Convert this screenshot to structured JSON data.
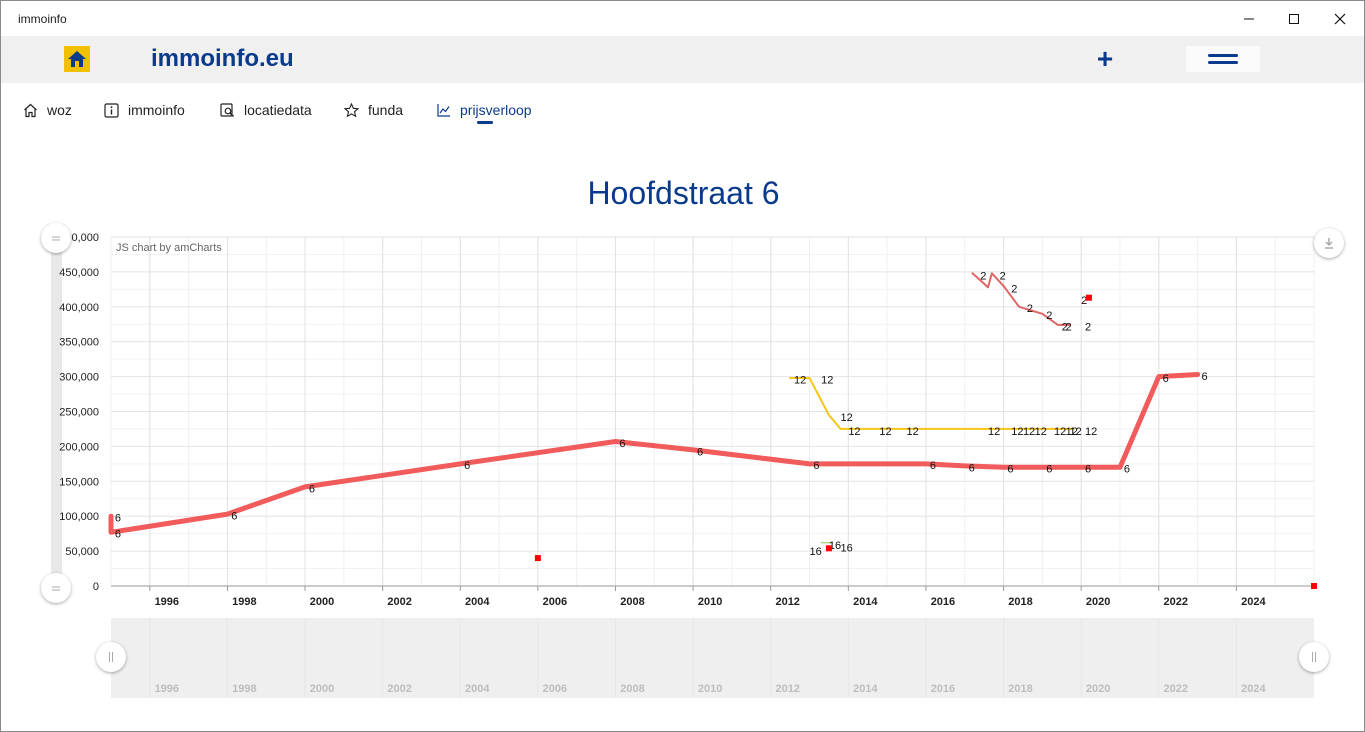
{
  "window": {
    "title": "immoinfo"
  },
  "header": {
    "brand": "immoinfo.eu",
    "add_label": "+"
  },
  "tabs": [
    {
      "label": "woz",
      "icon": "home-icon"
    },
    {
      "label": "immoinfo",
      "icon": "info-icon"
    },
    {
      "label": "locatiedata",
      "icon": "location-search-icon"
    },
    {
      "label": "funda",
      "icon": "star-icon"
    },
    {
      "label": "prijsverloop",
      "icon": "line-chart-icon",
      "active": true
    }
  ],
  "page": {
    "title": "Hoofdstraat  6",
    "credit": "JS chart by amCharts"
  },
  "colors": {
    "accent": "#0a3a8c",
    "series6": "#f15b5b",
    "series12": "#f5c518",
    "series2": "#e06666",
    "point": "#ff0000",
    "logo": "#f3c000"
  },
  "chart_data": {
    "type": "line",
    "title": "Hoofdstraat  6",
    "x_ticks": [
      "1996",
      "1998",
      "2000",
      "2002",
      "2004",
      "2006",
      "2008",
      "2010",
      "2012",
      "2014",
      "2016",
      "2018",
      "2020",
      "2022",
      "2024"
    ],
    "y_ticks": [
      "0",
      "50,000",
      "100,000",
      "150,000",
      "200,000",
      "250,000",
      "300,000",
      "350,000",
      "400,000",
      "450,000",
      "500,000"
    ],
    "xlim": [
      1995,
      2026
    ],
    "ylim": [
      0,
      500000
    ],
    "grid": true,
    "series": [
      {
        "name": "6",
        "color": "#f15b5b",
        "width": 5,
        "points": [
          [
            1995,
            100000
          ],
          [
            1995,
            77000
          ],
          [
            1998,
            103000
          ],
          [
            2000,
            142000
          ],
          [
            2004,
            175000
          ],
          [
            2008,
            207000
          ],
          [
            2010,
            195000
          ],
          [
            2013,
            175000
          ],
          [
            2016,
            175000
          ],
          [
            2017,
            172000
          ],
          [
            2018,
            170000
          ],
          [
            2019,
            170000
          ],
          [
            2020,
            170000
          ],
          [
            2021,
            170000
          ],
          [
            2022,
            300000
          ],
          [
            2023,
            303000
          ]
        ],
        "labels": [
          [
            1995.1,
            98000,
            "6"
          ],
          [
            1995.1,
            75000,
            "6"
          ],
          [
            1998.1,
            101000,
            "6"
          ],
          [
            2000.1,
            140000,
            "6"
          ],
          [
            2004.1,
            173000,
            "6"
          ],
          [
            2008.1,
            205000,
            "6"
          ],
          [
            2010.1,
            193000,
            "6"
          ],
          [
            2013.1,
            173000,
            "6"
          ],
          [
            2016.1,
            173000,
            "6"
          ],
          [
            2017.1,
            170000,
            "6"
          ],
          [
            2018.1,
            168000,
            "6"
          ],
          [
            2019.1,
            168000,
            "6"
          ],
          [
            2020.1,
            168000,
            "6"
          ],
          [
            2021.1,
            168000,
            "6"
          ],
          [
            2022.1,
            298000,
            "6"
          ],
          [
            2023.1,
            301000,
            "6"
          ]
        ]
      },
      {
        "name": "12",
        "color": "#f5c518",
        "width": 2,
        "points": [
          [
            2012.5,
            298000
          ],
          [
            2013,
            298000
          ],
          [
            2013.5,
            245000
          ],
          [
            2013.8,
            225000
          ],
          [
            2019.8,
            225000
          ]
        ],
        "labels": [
          [
            2012.6,
            296000,
            "12"
          ],
          [
            2013.3,
            296000,
            "12"
          ],
          [
            2013.8,
            242000,
            "12"
          ],
          [
            2014.0,
            222000,
            "12"
          ],
          [
            2014.8,
            222000,
            "12"
          ],
          [
            2015.5,
            222000,
            "12"
          ],
          [
            2017.6,
            222000,
            "12"
          ],
          [
            2018.2,
            222000,
            "12"
          ],
          [
            2018.5,
            222000,
            "12"
          ],
          [
            2018.8,
            222000,
            "12"
          ],
          [
            2019.3,
            222000,
            "12"
          ],
          [
            2019.6,
            222000,
            "12"
          ],
          [
            2019.7,
            222000,
            "12"
          ],
          [
            2020.1,
            222000,
            "12"
          ]
        ]
      },
      {
        "name": "2",
        "color": "#e06666",
        "width": 2,
        "points": [
          [
            2017.2,
            448000
          ],
          [
            2017.6,
            428000
          ],
          [
            2017.7,
            448000
          ],
          [
            2018,
            430000
          ],
          [
            2018.4,
            400000
          ],
          [
            2019,
            390000
          ],
          [
            2019.4,
            374000
          ],
          [
            2019.7,
            374000
          ]
        ],
        "labels": [
          [
            2017.4,
            445000,
            "2"
          ],
          [
            2017.9,
            445000,
            "2"
          ],
          [
            2018.2,
            426000,
            "2"
          ],
          [
            2018.6,
            398000,
            "2"
          ],
          [
            2019.1,
            388000,
            "2"
          ],
          [
            2019.5,
            372000,
            "2"
          ],
          [
            2019.6,
            372000,
            "2"
          ],
          [
            2020.1,
            372000,
            "2"
          ],
          [
            2020.0,
            410000,
            "2"
          ]
        ]
      },
      {
        "name": "16",
        "color": "#8bc34a",
        "width": 1,
        "points": [
          [
            2013.3,
            62000
          ],
          [
            2013.6,
            62000
          ]
        ],
        "labels": [
          [
            2013.0,
            50000,
            "16"
          ],
          [
            2013.8,
            55000,
            "16"
          ],
          [
            2013.5,
            59000,
            "16"
          ]
        ]
      }
    ],
    "markers": [
      [
        2006,
        40000
      ],
      [
        2013.5,
        54000
      ],
      [
        2020.2,
        413000
      ],
      [
        2026,
        0
      ]
    ]
  }
}
